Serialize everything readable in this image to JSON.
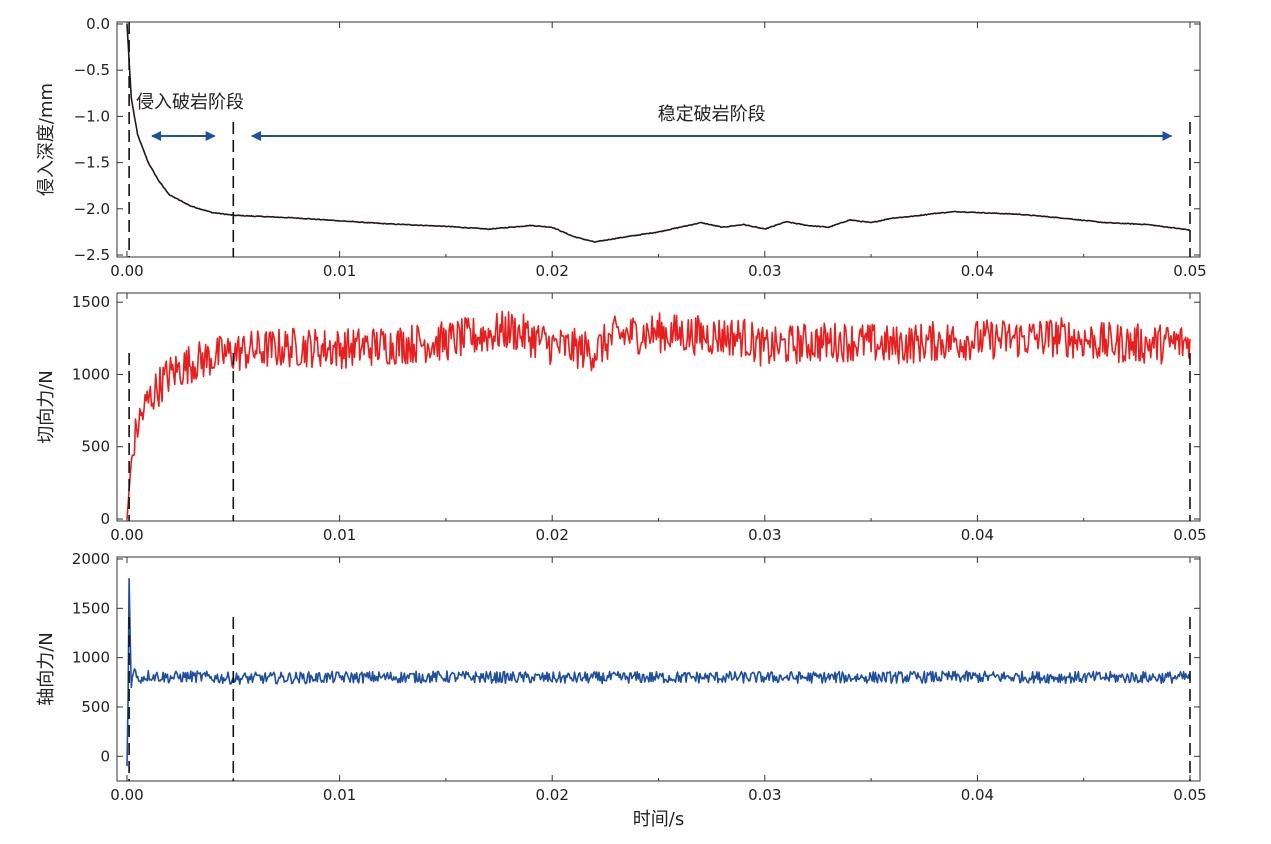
{
  "chart_data": [
    {
      "type": "line",
      "ylabel": "侵入深度/mm",
      "xlim": [
        0,
        0.05
      ],
      "ylim": [
        -2.5,
        0.0
      ],
      "x_ticks": [
        "0.00",
        "0.01",
        "0.02",
        "0.03",
        "0.04",
        "0.05"
      ],
      "y_ticks": [
        "0.0",
        "−0.5",
        "−1.0",
        "−1.5",
        "−2.0",
        "−2.5"
      ],
      "y_tick_values": [
        0.0,
        -0.5,
        -1.0,
        -1.5,
        -2.0,
        -2.5
      ],
      "color": "#231815",
      "noise": 0.004,
      "series": [
        {
          "x": [
            0.0,
            0.0002,
            0.0005,
            0.001,
            0.0015,
            0.002,
            0.003,
            0.004,
            0.005,
            0.006,
            0.008,
            0.01,
            0.012,
            0.015,
            0.017,
            0.019,
            0.02,
            0.021,
            0.022,
            0.023,
            0.025,
            0.027,
            0.028,
            0.029,
            0.03,
            0.031,
            0.032,
            0.033,
            0.034,
            0.035,
            0.036,
            0.037,
            0.038,
            0.039,
            0.04,
            0.041,
            0.042,
            0.044,
            0.046,
            0.048,
            0.05
          ],
          "y": [
            0.0,
            -0.8,
            -1.2,
            -1.5,
            -1.7,
            -1.85,
            -1.97,
            -2.04,
            -2.07,
            -2.08,
            -2.1,
            -2.13,
            -2.16,
            -2.19,
            -2.22,
            -2.18,
            -2.2,
            -2.3,
            -2.36,
            -2.32,
            -2.25,
            -2.15,
            -2.2,
            -2.17,
            -2.22,
            -2.14,
            -2.18,
            -2.2,
            -2.12,
            -2.15,
            -2.1,
            -2.08,
            -2.05,
            -2.03,
            -2.04,
            -2.05,
            -2.06,
            -2.1,
            -2.15,
            -2.17,
            -2.23
          ]
        }
      ],
      "reference_lines_x": [
        0.0001,
        0.005,
        0.05
      ],
      "annotations": [
        {
          "label": "侵入破岩阶段",
          "span": [
            0.0008,
            0.0045
          ]
        },
        {
          "label": "稳定破岩阶段",
          "span": [
            0.0055,
            0.0495
          ]
        }
      ]
    },
    {
      "type": "line",
      "ylabel": "切向力/N",
      "xlim": [
        0,
        0.05
      ],
      "ylim": [
        0,
        1550
      ],
      "x_ticks": [
        "0.00",
        "0.01",
        "0.02",
        "0.03",
        "0.04",
        "0.05"
      ],
      "y_ticks": [
        "0",
        "500",
        "1000",
        "1500"
      ],
      "y_tick_values": [
        0,
        500,
        1000,
        1500
      ],
      "color": "#e81f1f",
      "noise": 140,
      "series": [
        {
          "x": [
            0.0,
            0.0002,
            0.0005,
            0.001,
            0.0015,
            0.002,
            0.003,
            0.004,
            0.005,
            0.006,
            0.008,
            0.01,
            0.012,
            0.015,
            0.017,
            0.018,
            0.019,
            0.02,
            0.021,
            0.022,
            0.023,
            0.025,
            0.027,
            0.029,
            0.03,
            0.032,
            0.034,
            0.036,
            0.038,
            0.04,
            0.042,
            0.044,
            0.046,
            0.048,
            0.05
          ],
          "y": [
            0,
            400,
            650,
            820,
            920,
            1000,
            1080,
            1120,
            1150,
            1170,
            1190,
            1180,
            1200,
            1230,
            1280,
            1310,
            1260,
            1200,
            1180,
            1160,
            1270,
            1290,
            1270,
            1260,
            1180,
            1220,
            1230,
            1200,
            1230,
            1240,
            1250,
            1260,
            1220,
            1210,
            1220
          ]
        }
      ],
      "reference_lines_x": [
        0.0001,
        0.005,
        0.05
      ]
    },
    {
      "type": "line",
      "xlabel": "时间/s",
      "ylabel": "轴向力/N",
      "xlim": [
        0,
        0.05
      ],
      "ylim": [
        -230,
        2000
      ],
      "x_ticks": [
        "0.00",
        "0.01",
        "0.02",
        "0.03",
        "0.04",
        "0.05"
      ],
      "y_ticks": [
        "0",
        "500",
        "1000",
        "1500",
        "2000"
      ],
      "y_tick_values": [
        0,
        500,
        1000,
        1500,
        2000
      ],
      "color": "#1e4fa0",
      "noise": 60,
      "series": [
        {
          "x": [
            0.0,
            5e-05,
            0.0001,
            0.00015,
            0.0002,
            0.0003,
            0.0005,
            0.001,
            0.002,
            0.003,
            0.005,
            0.01,
            0.015,
            0.02,
            0.025,
            0.03,
            0.035,
            0.04,
            0.045,
            0.05
          ],
          "y": [
            -100,
            600,
            1800,
            1200,
            700,
            900,
            780,
            820,
            800,
            810,
            790,
            800,
            805,
            795,
            800,
            800,
            800,
            805,
            800,
            800
          ]
        }
      ],
      "reference_lines_x": [
        0.0001,
        0.005,
        0.05
      ]
    }
  ]
}
